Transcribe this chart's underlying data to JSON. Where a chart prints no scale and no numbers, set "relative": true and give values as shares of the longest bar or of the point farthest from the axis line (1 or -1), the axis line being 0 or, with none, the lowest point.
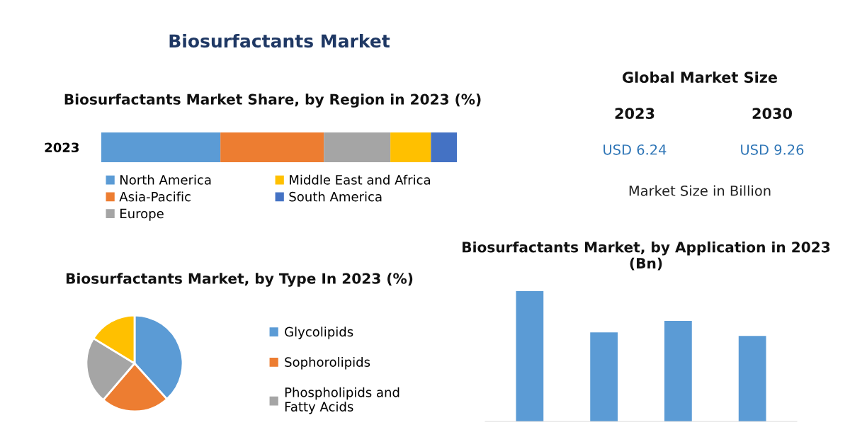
{
  "chart_data": [
    {
      "type": "bar",
      "orientation": "horizontal",
      "stacked": true,
      "relative": true,
      "title": "Biosurfactants Market Share, by Region in 2023 (%)",
      "annotations": [
        "Biosurfactants Market"
      ],
      "categories": [
        "2023"
      ],
      "legend": "bottom",
      "series": [
        {
          "name": "North America",
          "color": "#5b9bd5",
          "values": [
            0.335
          ]
        },
        {
          "name": "Asia-Pacific",
          "color": "#ed7d31",
          "values": [
            0.291
          ]
        },
        {
          "name": "Europe",
          "color": "#a5a5a5",
          "values": [
            0.187
          ]
        },
        {
          "name": "Middle East and Africa",
          "color": "#ffc000",
          "values": [
            0.114
          ]
        },
        {
          "name": "South America",
          "color": "#4472c4",
          "values": [
            0.073
          ]
        }
      ]
    },
    {
      "type": "other",
      "title": "Global Market Size",
      "annotations": [
        "2023",
        "2030",
        "USD 6.24",
        "USD 9.26",
        "Market Size in Billion"
      ]
    },
    {
      "type": "pie",
      "title": "Biosurfactants Market, by Type In 2023 (%)",
      "legend": "right",
      "categories": [
        "Glycolipids",
        "Sophorolipids",
        "Phospholipids and Fatty Acids",
        null
      ],
      "values": [
        38.3,
        23.0,
        22.4,
        16.3
      ],
      "colors": [
        "#5b9bd5",
        "#ed7d31",
        "#a5a5a5",
        "#ffc000"
      ]
    },
    {
      "type": "bar",
      "relative": true,
      "title": "Biosurfactants Market, by Application in 2023 (Bn)",
      "categories": [
        null,
        null,
        null,
        null
      ],
      "color": "#5b9bd5",
      "values": [
        1,
        0.683,
        0.772,
        0.656
      ]
    }
  ]
}
